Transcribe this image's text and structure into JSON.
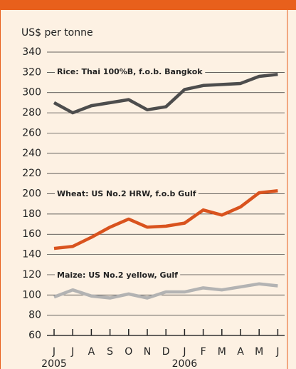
{
  "chart_data": {
    "type": "line",
    "y_label": "US$ per tonne",
    "categories": [
      "J",
      "J",
      "A",
      "S",
      "O",
      "N",
      "D",
      "J",
      "F",
      "M",
      "A",
      "M",
      "J"
    ],
    "years": [
      "2005",
      null,
      null,
      null,
      null,
      null,
      null,
      "2006",
      null,
      null,
      null,
      null,
      null
    ],
    "series": [
      {
        "name": "Rice: Thai 100%B, f.o.b. Bangkok",
        "color": "#4d4d4d",
        "values": [
          290,
          280,
          287,
          290,
          293,
          283,
          286,
          303,
          307,
          308,
          309,
          316,
          318
        ]
      },
      {
        "name": "Wheat: US No.2 HRW, f.o.b Gulf",
        "color": "#d9531e",
        "values": [
          146,
          148,
          157,
          167,
          175,
          167,
          168,
          171,
          184,
          179,
          187,
          201,
          203
        ]
      },
      {
        "name": "Maize: US No.2 yellow, Gulf",
        "color": "#b3b3b3",
        "values": [
          98,
          105,
          99,
          97,
          101,
          97,
          103,
          103,
          107,
          105,
          108,
          111,
          109
        ]
      }
    ],
    "ylim": [
      60,
      340
    ],
    "yticks": [
      60,
      80,
      100,
      120,
      140,
      160,
      180,
      200,
      220,
      240,
      260,
      280,
      300,
      320,
      340
    ],
    "grid": true
  }
}
